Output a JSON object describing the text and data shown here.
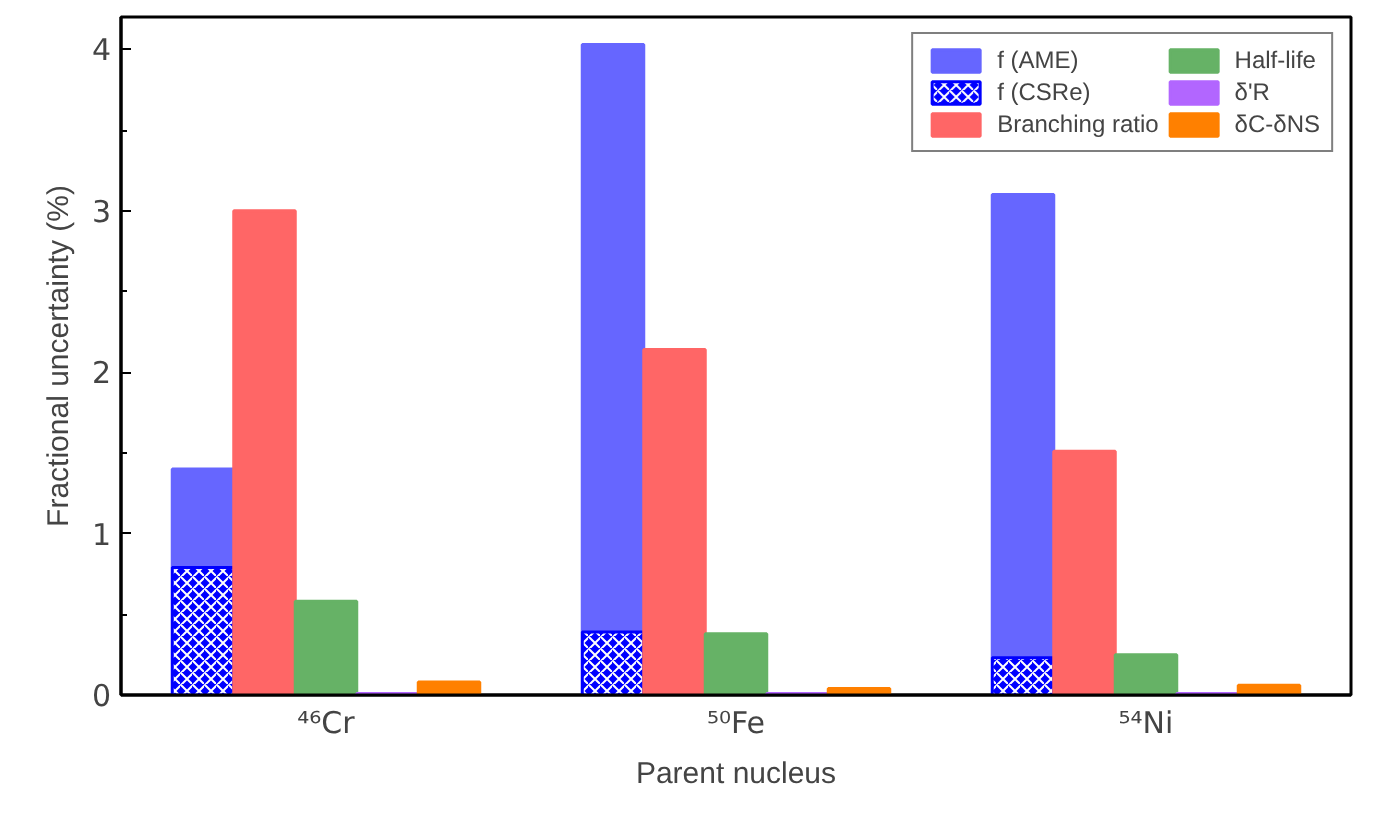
{
  "chart_data": {
    "type": "bar",
    "xlabel": "Parent nucleus",
    "ylabel": "Fractional uncertainty (%)",
    "categories": [
      "⁴⁶Cr",
      "⁵⁰Fe",
      "⁵⁴Ni"
    ],
    "series": [
      {
        "name": "f (AME)",
        "color": "#6666ff",
        "base": [
          0.79,
          0.39,
          0.23
        ],
        "values": [
          0.61,
          3.64,
          2.87
        ]
      },
      {
        "name": "f (CSRe)",
        "color": "#0000ff",
        "values": [
          0.79,
          0.39,
          0.23
        ]
      },
      {
        "name": "Branching ratio",
        "color": "#ff6666",
        "values": [
          3.0,
          2.14,
          1.51
        ]
      },
      {
        "name": "Half-life",
        "color": "#66b266",
        "values": [
          0.58,
          0.38,
          0.25
        ]
      },
      {
        "name": "δ'R",
        "color": "#b266ff",
        "values": [
          0.01,
          0.01,
          0.01
        ]
      },
      {
        "name": "δC-δNS",
        "color": "#ff8000",
        "values": [
          0.08,
          0.04,
          0.06
        ]
      }
    ],
    "ylim": [
      0,
      4.2
    ],
    "yticks": [
      0,
      {
        "value": 0.5,
        "label": null
      },
      1,
      {
        "value": 1.5,
        "label": null
      },
      2,
      {
        "value": 2.5,
        "label": null
      },
      3,
      {
        "value": 3.5,
        "label": null
      },
      4
    ],
    "grid": false,
    "legend": "top right"
  }
}
